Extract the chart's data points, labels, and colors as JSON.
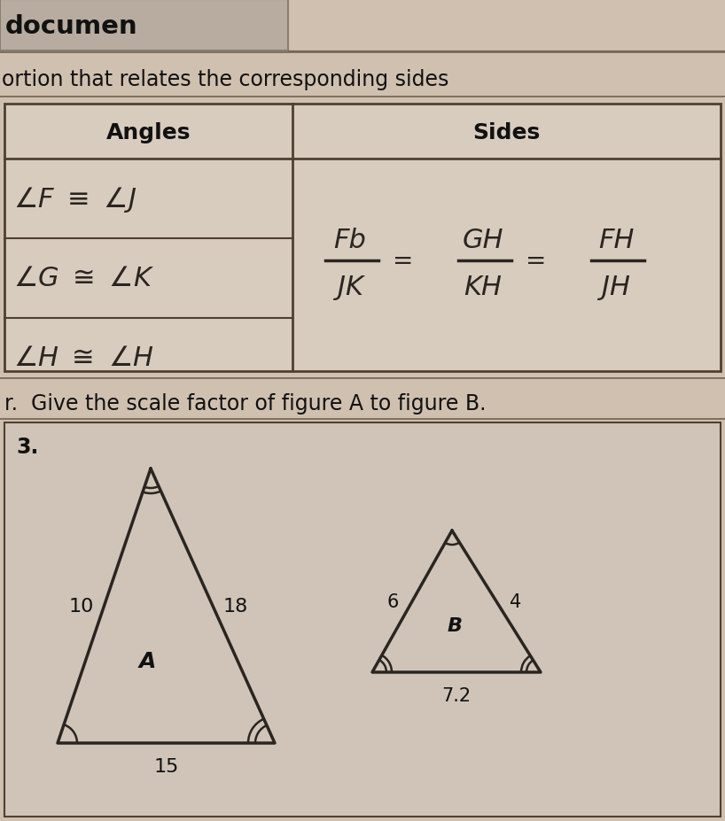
{
  "bg_color": "#c8b8a8",
  "page_bg": "#d8ccc0",
  "inner_bg": "#e8ddd5",
  "title_text": "documen",
  "subtitle_text": "ortion that relates the corresponding sides",
  "table_header_angles": "Angles",
  "table_header_sides": "Sides",
  "instruction": "r.  Give the scale factor of figure A to figure B.",
  "problem_number": "3.",
  "triangle_A_label": "A",
  "triangle_B_label": "B",
  "tri_A_side_left": "10",
  "tri_A_side_right": "18",
  "tri_A_side_bottom": "15",
  "tri_B_side_left": "6",
  "tri_B_side_right": "4",
  "tri_B_side_bottom": "7.2",
  "line_color": "#2a2520",
  "text_color": "#1a1510",
  "handwrite_color": "#2a2520"
}
